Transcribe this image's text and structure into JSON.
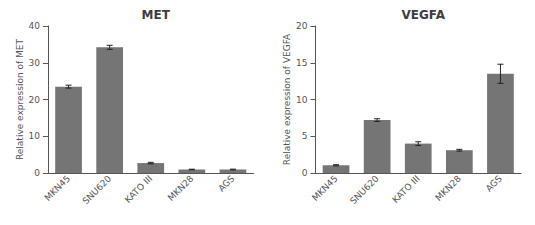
{
  "chart_data": [
    {
      "type": "bar",
      "title": "MET",
      "ylabel": "Relative expression of MET",
      "categories": [
        "MKN45",
        "SNU620",
        "KATO III",
        "MKN28",
        "AGS"
      ],
      "values": [
        23.5,
        34.2,
        2.7,
        0.95,
        0.95
      ],
      "errors": [
        0.4,
        0.55,
        0.2,
        0.08,
        0.1
      ],
      "color": "#757575",
      "ylim": [
        0,
        40
      ],
      "yticks": [
        0,
        10,
        20,
        30,
        40
      ],
      "grid": false
    },
    {
      "type": "bar",
      "title": "VEGFA",
      "ylabel": "Relative expression of VEGFA",
      "categories": [
        "MKN45",
        "SNU620",
        "KATO III",
        "MKN28",
        "AGS"
      ],
      "values": [
        1.05,
        7.2,
        4.0,
        3.1,
        13.5
      ],
      "errors": [
        0.08,
        0.18,
        0.25,
        0.12,
        1.3
      ],
      "color": "#757575",
      "ylim": [
        0,
        20
      ],
      "yticks": [
        0,
        5,
        10,
        15,
        20
      ],
      "grid": false
    }
  ]
}
